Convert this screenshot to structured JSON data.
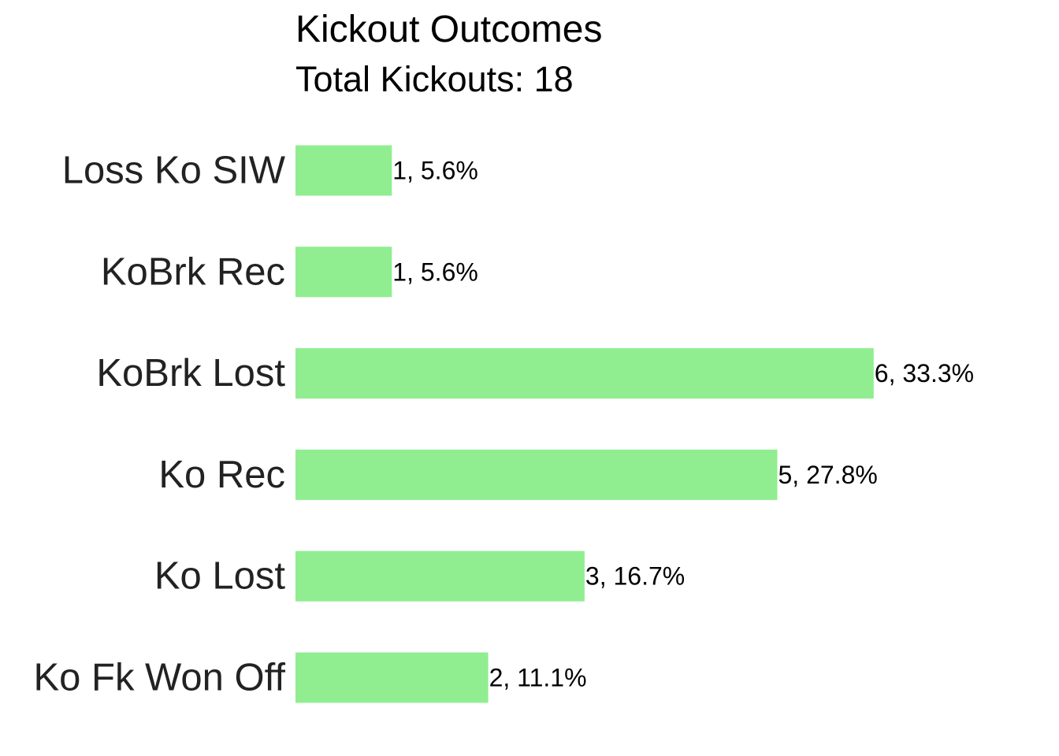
{
  "chart_data": {
    "type": "bar",
    "orientation": "horizontal",
    "title": "Kickout Outcomes",
    "subtitle": "Total Kickouts: 18",
    "categories": [
      "Loss Ko SIW",
      "KoBrk Rec",
      "KoBrk Lost",
      "Ko Rec",
      "Ko Lost",
      "Ko Fk Won Off"
    ],
    "values": [
      1,
      1,
      6,
      5,
      3,
      2
    ],
    "data_labels": [
      "1, 5.6%",
      "1, 5.6%",
      "6, 33.3%",
      "5, 27.8%",
      "3, 16.7%",
      "2, 11.1%"
    ],
    "xlim": [
      0,
      6
    ],
    "bar_color": "#90ee90",
    "grid": false,
    "legend": "none",
    "xlabel": "",
    "ylabel": ""
  }
}
